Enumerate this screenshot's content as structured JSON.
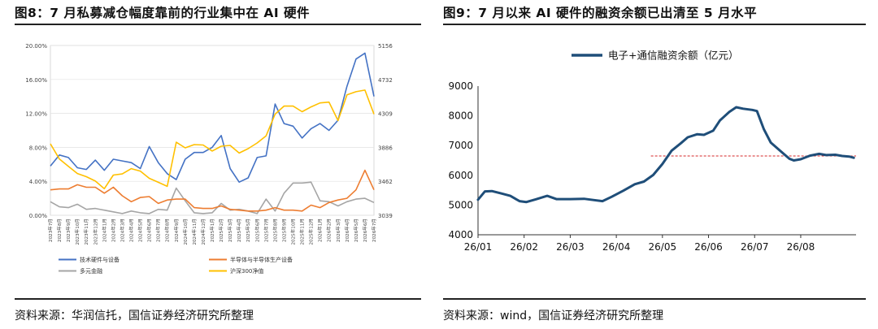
{
  "panels": [
    {
      "title": "图8：7 月私募减仓幅度靠前的行业集中在 AI 硬件",
      "source": "资料来源：华润信托，国信证券经济研究所整理"
    },
    {
      "title": "图9：7 月以来 AI 硬件的融资余额已出清至 5 月水平",
      "source": "资料来源：wind，国信证券经济研究所整理"
    }
  ],
  "chart_data": [
    {
      "type": "line",
      "title": "",
      "categories": [
        "2023年7月",
        "2023年8月",
        "2023年9月",
        "2023年10月",
        "2023年11月",
        "2023年12月",
        "2024年1月",
        "2024年2月",
        "2024年3月",
        "2024年4月",
        "2024年5月",
        "2024年6月",
        "2024年7月",
        "2024年8月",
        "2024年9月",
        "2024年10月",
        "2024年11月",
        "2024年12月",
        "2025年1月",
        "2025年2月",
        "2025年3月",
        "2025年4月",
        "2025年5月",
        "2025年6月",
        "2025年7月",
        "2025年8月",
        "2025年9月",
        "2025年10月",
        "2025年11月",
        "2025年12月",
        "2026年1月",
        "2026年2月",
        "2026年3月",
        "2026年4月",
        "2026年5月",
        "2026年6月",
        "2026年7月"
      ],
      "y_left": {
        "ticks": [
          "0.00%",
          "4.00%",
          "8.00%",
          "12.00%",
          "16.00%",
          "20.00%"
        ],
        "ylim": [
          0,
          20
        ]
      },
      "y_right": {
        "ticks": [
          "3039",
          "3462",
          "3886",
          "4309",
          "4732",
          "5156"
        ],
        "ylim": [
          3039,
          5156
        ]
      },
      "series": [
        {
          "name": "技术硬件与设备",
          "axis": "left",
          "color": "#4472c4",
          "values": [
            5.8,
            7.1,
            6.8,
            5.6,
            5.4,
            6.5,
            5.3,
            6.6,
            6.4,
            6.2,
            5.5,
            8.1,
            6.2,
            4.9,
            4.2,
            6.6,
            7.4,
            7.4,
            8.0,
            9.4,
            5.5,
            3.9,
            4.4,
            6.8,
            7.0,
            13.1,
            10.8,
            10.5,
            9.1,
            10.2,
            10.8,
            10.0,
            11.2,
            15.2,
            18.4,
            19.1,
            14.0
          ]
        },
        {
          "name": "半导体与半导体生产设备",
          "axis": "left",
          "color": "#ed7d31",
          "values": [
            3.0,
            3.1,
            3.1,
            3.6,
            3.3,
            3.3,
            2.6,
            3.3,
            2.3,
            1.6,
            2.1,
            2.2,
            1.4,
            1.8,
            1.9,
            1.9,
            0.9,
            0.8,
            0.8,
            1.1,
            0.7,
            0.6,
            0.5,
            0.5,
            0.6,
            0.9,
            0.6,
            0.6,
            0.5,
            1.2,
            0.9,
            1.5,
            1.8,
            2.0,
            3.0,
            5.3,
            3.0
          ]
        },
        {
          "name": "多元金融",
          "axis": "left",
          "color": "#a5a5a5",
          "values": [
            1.6,
            1.0,
            0.9,
            1.3,
            0.7,
            0.8,
            0.6,
            0.4,
            0.2,
            0.5,
            0.3,
            0.2,
            0.7,
            0.6,
            3.2,
            1.7,
            0.3,
            0.2,
            0.3,
            1.4,
            0.6,
            0.7,
            0.5,
            0.2,
            1.9,
            0.5,
            2.6,
            3.8,
            3.8,
            3.9,
            1.7,
            1.6,
            1.1,
            1.6,
            1.9,
            2.0,
            1.5
          ]
        },
        {
          "name": "沪深300净值",
          "axis": "right",
          "color": "#ffc000",
          "values": [
            3930,
            3740,
            3650,
            3560,
            3520,
            3465,
            3370,
            3540,
            3555,
            3620,
            3590,
            3500,
            3450,
            3400,
            3950,
            3880,
            3920,
            3915,
            3840,
            3900,
            3910,
            3815,
            3870,
            3940,
            4030,
            4300,
            4400,
            4400,
            4330,
            4390,
            4440,
            4450,
            4220,
            4540,
            4580,
            4600,
            4300
          ]
        }
      ]
    },
    {
      "type": "line",
      "title": "",
      "legend": "电子+通信融资余额（亿元）",
      "legend_position": "top-center",
      "x_ticks": [
        "26/01",
        "26/02",
        "26/03",
        "26/04",
        "26/05",
        "26/06",
        "26/07",
        "26/08"
      ],
      "y_ticks": [
        4000,
        5000,
        6000,
        7000,
        8000,
        9000
      ],
      "ylim": [
        4000,
        9000
      ],
      "reference_line": {
        "y": 6650,
        "color": "#d62728",
        "style": "dashed"
      },
      "series": [
        {
          "name": "电子+通信融资余额（亿元）",
          "color": "#1f4e79",
          "points": [
            [
              0.0,
              5180
            ],
            [
              0.15,
              5460
            ],
            [
              0.3,
              5470
            ],
            [
              0.5,
              5390
            ],
            [
              0.7,
              5310
            ],
            [
              0.9,
              5130
            ],
            [
              1.05,
              5100
            ],
            [
              1.25,
              5190
            ],
            [
              1.5,
              5310
            ],
            [
              1.7,
              5200
            ],
            [
              2.0,
              5200
            ],
            [
              2.3,
              5210
            ],
            [
              2.5,
              5170
            ],
            [
              2.7,
              5130
            ],
            [
              2.9,
              5280
            ],
            [
              3.15,
              5480
            ],
            [
              3.4,
              5700
            ],
            [
              3.6,
              5790
            ],
            [
              3.8,
              6010
            ],
            [
              4.0,
              6380
            ],
            [
              4.2,
              6830
            ],
            [
              4.4,
              7080
            ],
            [
              4.55,
              7280
            ],
            [
              4.75,
              7380
            ],
            [
              4.9,
              7360
            ],
            [
              5.1,
              7500
            ],
            [
              5.25,
              7850
            ],
            [
              5.45,
              8130
            ],
            [
              5.6,
              8290
            ],
            [
              5.75,
              8240
            ],
            [
              5.95,
              8200
            ],
            [
              6.05,
              8160
            ],
            [
              6.2,
              7550
            ],
            [
              6.35,
              7100
            ],
            [
              6.55,
              6830
            ],
            [
              6.75,
              6560
            ],
            [
              6.85,
              6500
            ],
            [
              7.0,
              6540
            ],
            [
              7.2,
              6660
            ],
            [
              7.4,
              6720
            ],
            [
              7.55,
              6680
            ],
            [
              7.75,
              6690
            ],
            [
              7.9,
              6650
            ],
            [
              8.05,
              6630
            ],
            [
              8.15,
              6590
            ]
          ]
        }
      ]
    }
  ]
}
